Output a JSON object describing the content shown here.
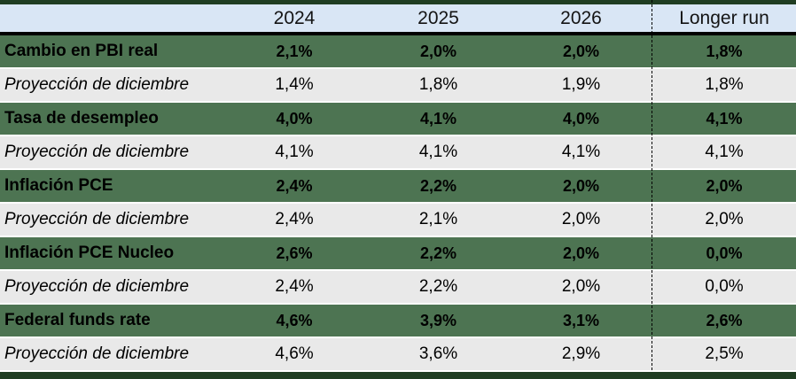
{
  "chart_data": {
    "type": "table",
    "columns": [
      "",
      "2024",
      "2025",
      "2026",
      "Longer run"
    ],
    "rows": [
      {
        "label": "Cambio en PBI real",
        "type": "projection",
        "values": [
          "2,1%",
          "2,0%",
          "2,0%",
          "1,8%"
        ]
      },
      {
        "label": "Proyección de diciembre",
        "type": "december",
        "values": [
          "1,4%",
          "1,8%",
          "1,9%",
          "1,8%"
        ]
      },
      {
        "label": "Tasa de desempleo",
        "type": "projection",
        "values": [
          "4,0%",
          "4,1%",
          "4,0%",
          "4,1%"
        ]
      },
      {
        "label": "Proyección de diciembre",
        "type": "december",
        "values": [
          "4,1%",
          "4,1%",
          "4,1%",
          "4,1%"
        ]
      },
      {
        "label": "Inflación PCE",
        "type": "projection",
        "values": [
          "2,4%",
          "2,2%",
          "2,0%",
          "2,0%"
        ]
      },
      {
        "label": "Proyección de diciembre",
        "type": "december",
        "values": [
          "2,4%",
          "2,1%",
          "2,0%",
          "2,0%"
        ]
      },
      {
        "label": "Inflación PCE Nucleo",
        "type": "projection",
        "values": [
          "2,6%",
          "2,2%",
          "2,0%",
          "0,0%"
        ]
      },
      {
        "label": "Proyección de diciembre",
        "type": "december",
        "values": [
          "2,4%",
          "2,2%",
          "2,0%",
          "0,0%"
        ]
      },
      {
        "label": "Federal funds rate",
        "type": "projection",
        "values": [
          "4,6%",
          "3,9%",
          "3,1%",
          "2,6%"
        ]
      },
      {
        "label": "Proyección de diciembre",
        "type": "december",
        "values": [
          "4,6%",
          "3,6%",
          "2,9%",
          "2,5%"
        ]
      }
    ],
    "layout": {
      "legend": "none",
      "grid": "row-separators-white",
      "longer_run_separator": "dashed-vertical-line"
    }
  },
  "colors": {
    "band": "#1f3d22",
    "header_bg": "#d9e6f5",
    "projection_row": "#4d7452",
    "december_row": "#e9e9e9",
    "text": "#000000"
  }
}
